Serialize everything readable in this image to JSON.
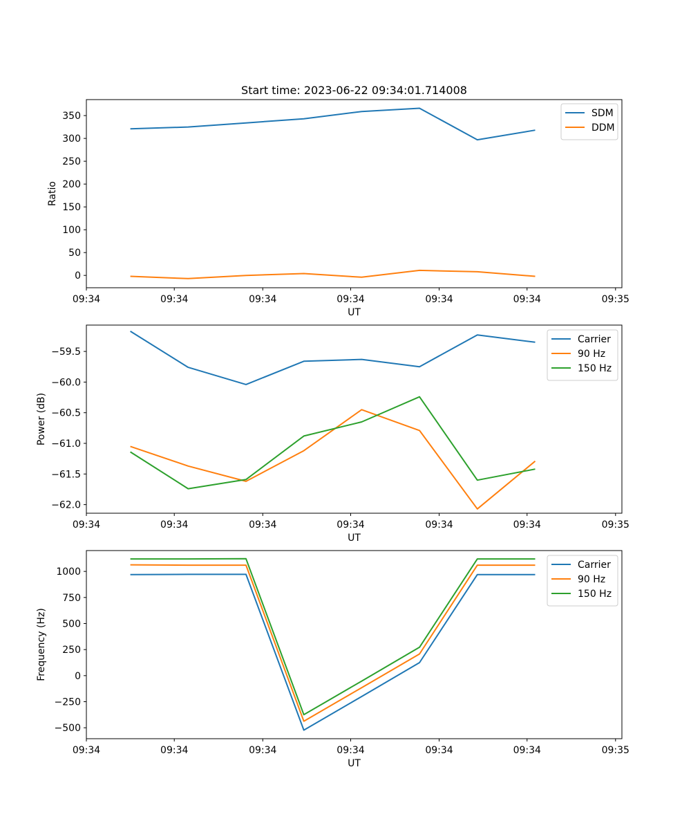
{
  "chart_data": [
    {
      "type": "line",
      "title": "Start time: 2023-06-22 09:34:01.714008",
      "xlabel": "UT",
      "ylabel": "Ratio",
      "x_tick_labels": [
        "09:34",
        "09:34",
        "09:34",
        "09:34",
        "09:34",
        "09:34",
        "09:35"
      ],
      "y_ticks": [
        0,
        50,
        100,
        150,
        200,
        250,
        300,
        350
      ],
      "y_tick_labels": [
        "0",
        "50",
        "100",
        "150",
        "200",
        "250",
        "300",
        "350"
      ],
      "ylim": [
        -27,
        385
      ],
      "x_index": [
        0,
        1,
        2,
        3,
        4,
        5,
        6,
        7
      ],
      "series": [
        {
          "name": "SDM",
          "color": "#1f77b4",
          "values": [
            321,
            325,
            334,
            343,
            359,
            366,
            297,
            318
          ]
        },
        {
          "name": "DDM",
          "color": "#ff7f0e",
          "values": [
            -2,
            -7,
            0,
            4,
            -4,
            11,
            8,
            -2
          ]
        }
      ],
      "legend": "top-right",
      "grid": false
    },
    {
      "type": "line",
      "title": "",
      "xlabel": "UT",
      "ylabel": "Power (dB)",
      "x_tick_labels": [
        "09:34",
        "09:34",
        "09:34",
        "09:34",
        "09:34",
        "09:34",
        "09:35"
      ],
      "y_ticks": [
        -62.0,
        -61.5,
        -61.0,
        -60.5,
        -60.0,
        -59.5
      ],
      "y_tick_labels": [
        "−62.0",
        "−61.5",
        "−61.0",
        "−60.5",
        "−60.0",
        "−59.5"
      ],
      "ylim": [
        -62.14,
        -59.07
      ],
      "x_index": [
        0,
        1,
        2,
        3,
        4,
        5,
        6,
        7
      ],
      "series": [
        {
          "name": "Carrier",
          "color": "#1f77b4",
          "values": [
            -59.17,
            -59.76,
            -60.04,
            -59.66,
            -59.63,
            -59.75,
            -59.23,
            -59.35
          ]
        },
        {
          "name": "90 Hz",
          "color": "#ff7f0e",
          "values": [
            -61.05,
            -61.37,
            -61.62,
            -61.12,
            -60.45,
            -60.79,
            -62.07,
            -61.29
          ]
        },
        {
          "name": "150 Hz",
          "color": "#2ca02c",
          "values": [
            -61.14,
            -61.74,
            -61.59,
            -60.88,
            -60.65,
            -60.24,
            -61.6,
            -61.42
          ]
        }
      ],
      "legend": "top-right",
      "grid": false
    },
    {
      "type": "line",
      "title": "",
      "xlabel": "UT",
      "ylabel": "Frequency (Hz)",
      "x_tick_labels": [
        "09:34",
        "09:34",
        "09:34",
        "09:34",
        "09:34",
        "09:34",
        "09:35"
      ],
      "y_ticks": [
        -500,
        -250,
        0,
        250,
        500,
        750,
        1000
      ],
      "y_tick_labels": [
        "−500",
        "−250",
        "0",
        "250",
        "500",
        "750",
        "1000"
      ],
      "ylim": [
        -605,
        1200
      ],
      "x_index": [
        0,
        1,
        2,
        3,
        4,
        5,
        6,
        7
      ],
      "series": [
        {
          "name": "Carrier",
          "color": "#1f77b4",
          "values": [
            970,
            972,
            972,
            -523,
            -200,
            125,
            970,
            970
          ]
        },
        {
          "name": "90 Hz",
          "color": "#ff7f0e",
          "values": [
            1063,
            1060,
            1060,
            -437,
            -115,
            208,
            1060,
            1060
          ]
        },
        {
          "name": "150 Hz",
          "color": "#2ca02c",
          "values": [
            1120,
            1120,
            1122,
            -375,
            -52,
            272,
            1120,
            1120
          ]
        }
      ],
      "legend": "top-right",
      "grid": false
    }
  ]
}
